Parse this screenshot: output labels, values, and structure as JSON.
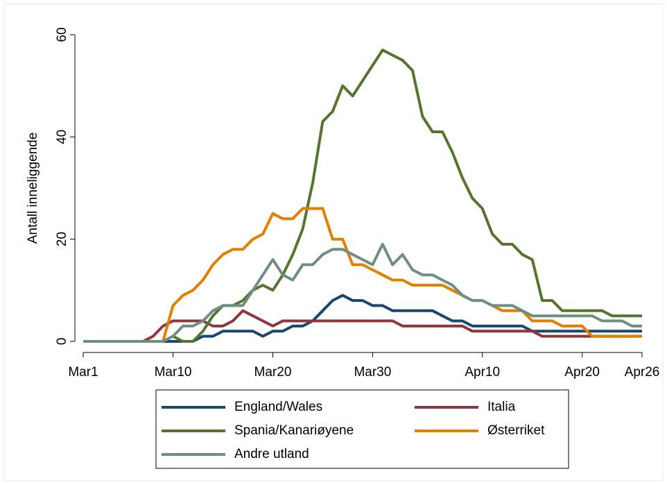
{
  "chart_data": {
    "type": "line",
    "y_label": "Antall inneliggende",
    "categories": [
      "Mar1",
      null,
      null,
      null,
      null,
      null,
      null,
      null,
      null,
      "Mar10",
      null,
      null,
      null,
      null,
      null,
      null,
      null,
      null,
      null,
      "Mar20",
      null,
      null,
      null,
      null,
      null,
      null,
      null,
      null,
      null,
      "Mar30",
      null,
      null,
      null,
      null,
      null,
      null,
      null,
      null,
      null,
      null,
      "Apr10",
      null,
      null,
      null,
      null,
      null,
      null,
      null,
      null,
      null,
      "Apr20",
      null,
      null,
      null,
      null,
      null,
      "Apr26"
    ],
    "ylim": [
      0,
      60
    ],
    "yticks": [
      0,
      20,
      40,
      60
    ],
    "series": [
      {
        "name": "England/Wales",
        "color": "#1a476f",
        "values": [
          0,
          0,
          0,
          0,
          0,
          0,
          0,
          0,
          0,
          0,
          0,
          0,
          1,
          1,
          2,
          2,
          2,
          2,
          1,
          2,
          2,
          3,
          3,
          4,
          6,
          8,
          9,
          8,
          8,
          7,
          7,
          6,
          6,
          6,
          6,
          6,
          5,
          4,
          4,
          3,
          3,
          3,
          3,
          3,
          3,
          2,
          2,
          2,
          2,
          2,
          2,
          2,
          2,
          2,
          2,
          2,
          2
        ]
      },
      {
        "name": "Italia",
        "color": "#90353b",
        "values": [
          0,
          0,
          0,
          0,
          0,
          0,
          0,
          1,
          3,
          4,
          4,
          4,
          4,
          3,
          3,
          4,
          6,
          5,
          4,
          3,
          4,
          4,
          4,
          4,
          4,
          4,
          4,
          4,
          4,
          4,
          4,
          4,
          3,
          3,
          3,
          3,
          3,
          3,
          3,
          2,
          2,
          2,
          2,
          2,
          2,
          2,
          1,
          1,
          1,
          1,
          1,
          1,
          1,
          1,
          1,
          1,
          1
        ]
      },
      {
        "name": "Spania/Kanariøyene",
        "color": "#55752f",
        "values": [
          0,
          0,
          0,
          0,
          0,
          0,
          0,
          0,
          0,
          1,
          0,
          0,
          2,
          5,
          7,
          7,
          8,
          10,
          11,
          10,
          13,
          17,
          22,
          31,
          43,
          45,
          50,
          48,
          51,
          54,
          57,
          56,
          55,
          53,
          44,
          41,
          41,
          37,
          32,
          28,
          26,
          21,
          19,
          19,
          17,
          16,
          8,
          8,
          6,
          6,
          6,
          6,
          6,
          5,
          5,
          5,
          5
        ]
      },
      {
        "name": "Østerriket",
        "color": "#e37e00",
        "values": [
          0,
          0,
          0,
          0,
          0,
          0,
          0,
          0,
          0,
          7,
          9,
          10,
          12,
          15,
          17,
          18,
          18,
          20,
          21,
          25,
          24,
          24,
          26,
          26,
          26,
          20,
          20,
          15,
          15,
          14,
          13,
          12,
          12,
          11,
          11,
          11,
          11,
          10,
          9,
          8,
          8,
          7,
          6,
          6,
          6,
          4,
          4,
          4,
          3,
          3,
          3,
          1,
          1,
          1,
          1,
          1,
          1
        ]
      },
      {
        "name": "Andre utland",
        "color": "#6e8e84",
        "values": [
          0,
          0,
          0,
          0,
          0,
          0,
          0,
          0,
          0,
          1,
          3,
          3,
          4,
          6,
          7,
          7,
          7,
          10,
          13,
          16,
          13,
          12,
          15,
          15,
          17,
          18,
          18,
          17,
          16,
          15,
          19,
          15,
          17,
          14,
          13,
          13,
          12,
          11,
          9,
          8,
          8,
          7,
          7,
          7,
          6,
          5,
          5,
          5,
          5,
          5,
          5,
          5,
          4,
          4,
          4,
          3,
          3
        ]
      }
    ]
  }
}
